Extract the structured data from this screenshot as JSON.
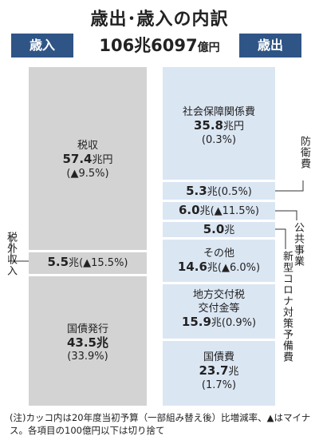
{
  "title": "歳出･歳入の内訳",
  "header": {
    "revenue_label": "歳入",
    "expenditure_label": "歳出",
    "total_value": "106兆6097",
    "total_unit": "億円"
  },
  "revenue": {
    "tax": {
      "name": "税収",
      "value": "57.4",
      "unit": "兆円",
      "change": "(▲9.5%)"
    },
    "nontax": {
      "label": "税外収入",
      "value": "5.5",
      "unit": "兆",
      "change": "(▲15.5%)"
    },
    "bonds": {
      "name": "国債発行",
      "value": "43.5",
      "unit": "兆",
      "change": "(33.9%)"
    }
  },
  "expenditure": {
    "social": {
      "name": "社会保障関係費",
      "value": "35.8",
      "unit": "兆円",
      "change": "(0.3%)"
    },
    "defense": {
      "label": "防衛費",
      "value": "5.3",
      "unit": "兆",
      "change": "(0.5%)"
    },
    "public_works": {
      "label": "公共事業",
      "value": "6.0",
      "unit": "兆",
      "change": "(▲11.5%)"
    },
    "corona": {
      "label": "新型コロナ対策予備費",
      "value": "5.0",
      "unit": "兆"
    },
    "other": {
      "name": "その他",
      "value": "14.6",
      "unit": "兆",
      "change": "(▲6.0%)"
    },
    "local": {
      "name1": "地方交付税",
      "name2": "交付金等",
      "value": "15.9",
      "unit": "兆",
      "change": "(0.9%)"
    },
    "debt": {
      "name": "国債費",
      "value": "23.7",
      "unit": "兆",
      "change": "(1.7%)"
    }
  },
  "note": "(注)カッコ内は20年度当初予算（一部組み替え後）比増減率、▲はマイナス。各項目の100億円以下は切り捨て"
}
